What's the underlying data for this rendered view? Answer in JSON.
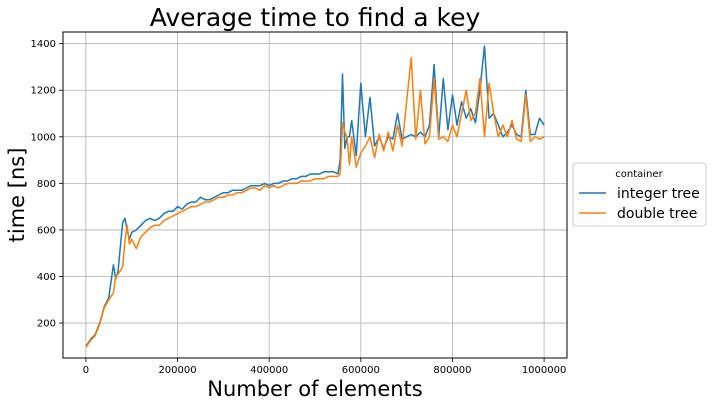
{
  "chart_data": {
    "type": "line",
    "title": "Average time to find a key",
    "xlabel": "Number of elements",
    "ylabel": "time [ns]",
    "xlim": [
      -50000,
      1050000
    ],
    "ylim": [
      50,
      1450
    ],
    "xticks": [
      0,
      200000,
      400000,
      600000,
      800000,
      1000000
    ],
    "yticks": [
      200,
      400,
      600,
      800,
      1000,
      1200,
      1400
    ],
    "grid": true,
    "legend": {
      "title": "container",
      "placement": "outside-right"
    },
    "series": [
      {
        "name": "integer tree",
        "color": "#1f77b4",
        "x": [
          0,
          10000,
          20000,
          30000,
          40000,
          50000,
          60000,
          65000,
          70000,
          80000,
          85000,
          90000,
          95000,
          100000,
          110000,
          120000,
          130000,
          140000,
          150000,
          160000,
          170000,
          180000,
          190000,
          200000,
          210000,
          220000,
          230000,
          240000,
          250000,
          260000,
          270000,
          280000,
          290000,
          300000,
          310000,
          320000,
          330000,
          340000,
          350000,
          360000,
          370000,
          380000,
          390000,
          400000,
          410000,
          420000,
          430000,
          440000,
          450000,
          460000,
          470000,
          480000,
          490000,
          500000,
          510000,
          520000,
          530000,
          540000,
          550000,
          555000,
          560000,
          565000,
          570000,
          575000,
          580000,
          590000,
          600000,
          610000,
          620000,
          630000,
          640000,
          650000,
          660000,
          670000,
          680000,
          690000,
          700000,
          710000,
          720000,
          730000,
          740000,
          750000,
          760000,
          770000,
          780000,
          790000,
          800000,
          810000,
          820000,
          830000,
          840000,
          850000,
          860000,
          870000,
          880000,
          890000,
          900000,
          910000,
          920000,
          930000,
          940000,
          950000,
          960000,
          970000,
          980000,
          990000,
          1000000
        ],
        "values": [
          100,
          130,
          150,
          200,
          270,
          310,
          450,
          390,
          420,
          630,
          650,
          600,
          560,
          590,
          600,
          620,
          640,
          650,
          640,
          650,
          670,
          680,
          680,
          700,
          690,
          710,
          720,
          720,
          740,
          730,
          730,
          740,
          750,
          760,
          760,
          770,
          770,
          770,
          780,
          790,
          790,
          790,
          800,
          790,
          800,
          800,
          810,
          810,
          820,
          820,
          830,
          830,
          840,
          840,
          840,
          850,
          850,
          850,
          840,
          900,
          1270,
          950,
          1000,
          1000,
          1070,
          920,
          1230,
          1000,
          1170,
          960,
          1000,
          950,
          1000,
          990,
          1100,
          990,
          1000,
          1010,
          1000,
          1020,
          1000,
          1050,
          1310,
          1000,
          1250,
          1030,
          1180,
          1050,
          1150,
          1080,
          1120,
          1060,
          1200,
          1390,
          1080,
          1100,
          1050,
          1000,
          1020,
          1050,
          1010,
          1000,
          1200,
          1010,
          1010,
          1080,
          1050
        ]
      },
      {
        "name": "double tree",
        "color": "#ff7f0e",
        "x": [
          0,
          10000,
          20000,
          30000,
          40000,
          50000,
          60000,
          65000,
          70000,
          80000,
          85000,
          90000,
          95000,
          100000,
          110000,
          120000,
          130000,
          140000,
          150000,
          160000,
          170000,
          180000,
          190000,
          200000,
          210000,
          220000,
          230000,
          240000,
          250000,
          260000,
          270000,
          280000,
          290000,
          300000,
          310000,
          320000,
          330000,
          340000,
          350000,
          360000,
          370000,
          380000,
          390000,
          400000,
          410000,
          420000,
          430000,
          440000,
          450000,
          460000,
          470000,
          480000,
          490000,
          500000,
          510000,
          520000,
          530000,
          540000,
          550000,
          555000,
          560000,
          565000,
          570000,
          575000,
          580000,
          590000,
          600000,
          610000,
          620000,
          630000,
          640000,
          650000,
          660000,
          670000,
          680000,
          690000,
          700000,
          710000,
          720000,
          730000,
          740000,
          750000,
          760000,
          770000,
          780000,
          790000,
          800000,
          810000,
          820000,
          830000,
          840000,
          850000,
          860000,
          870000,
          880000,
          890000,
          900000,
          910000,
          920000,
          930000,
          940000,
          950000,
          960000,
          970000,
          980000,
          990000,
          1000000
        ],
        "values": [
          95,
          125,
          145,
          195,
          265,
          300,
          330,
          400,
          410,
          440,
          550,
          620,
          540,
          560,
          520,
          570,
          590,
          610,
          620,
          620,
          640,
          650,
          660,
          670,
          680,
          690,
          700,
          700,
          710,
          720,
          720,
          730,
          740,
          740,
          750,
          750,
          760,
          760,
          770,
          780,
          780,
          770,
          790,
          780,
          790,
          780,
          790,
          800,
          800,
          800,
          810,
          810,
          810,
          820,
          820,
          820,
          830,
          830,
          830,
          840,
          1060,
          1020,
          1000,
          880,
          1000,
          870,
          930,
          960,
          1000,
          910,
          1010,
          940,
          1020,
          940,
          1050,
          960,
          1150,
          1340,
          990,
          1200,
          970,
          1000,
          1250,
          990,
          1000,
          980,
          1050,
          1000,
          1100,
          1200,
          1070,
          1100,
          1250,
          1000,
          1230,
          1100,
          1000,
          1050,
          1000,
          1070,
          990,
          980,
          1180,
          980,
          1000,
          990,
          1000
        ]
      }
    ]
  }
}
